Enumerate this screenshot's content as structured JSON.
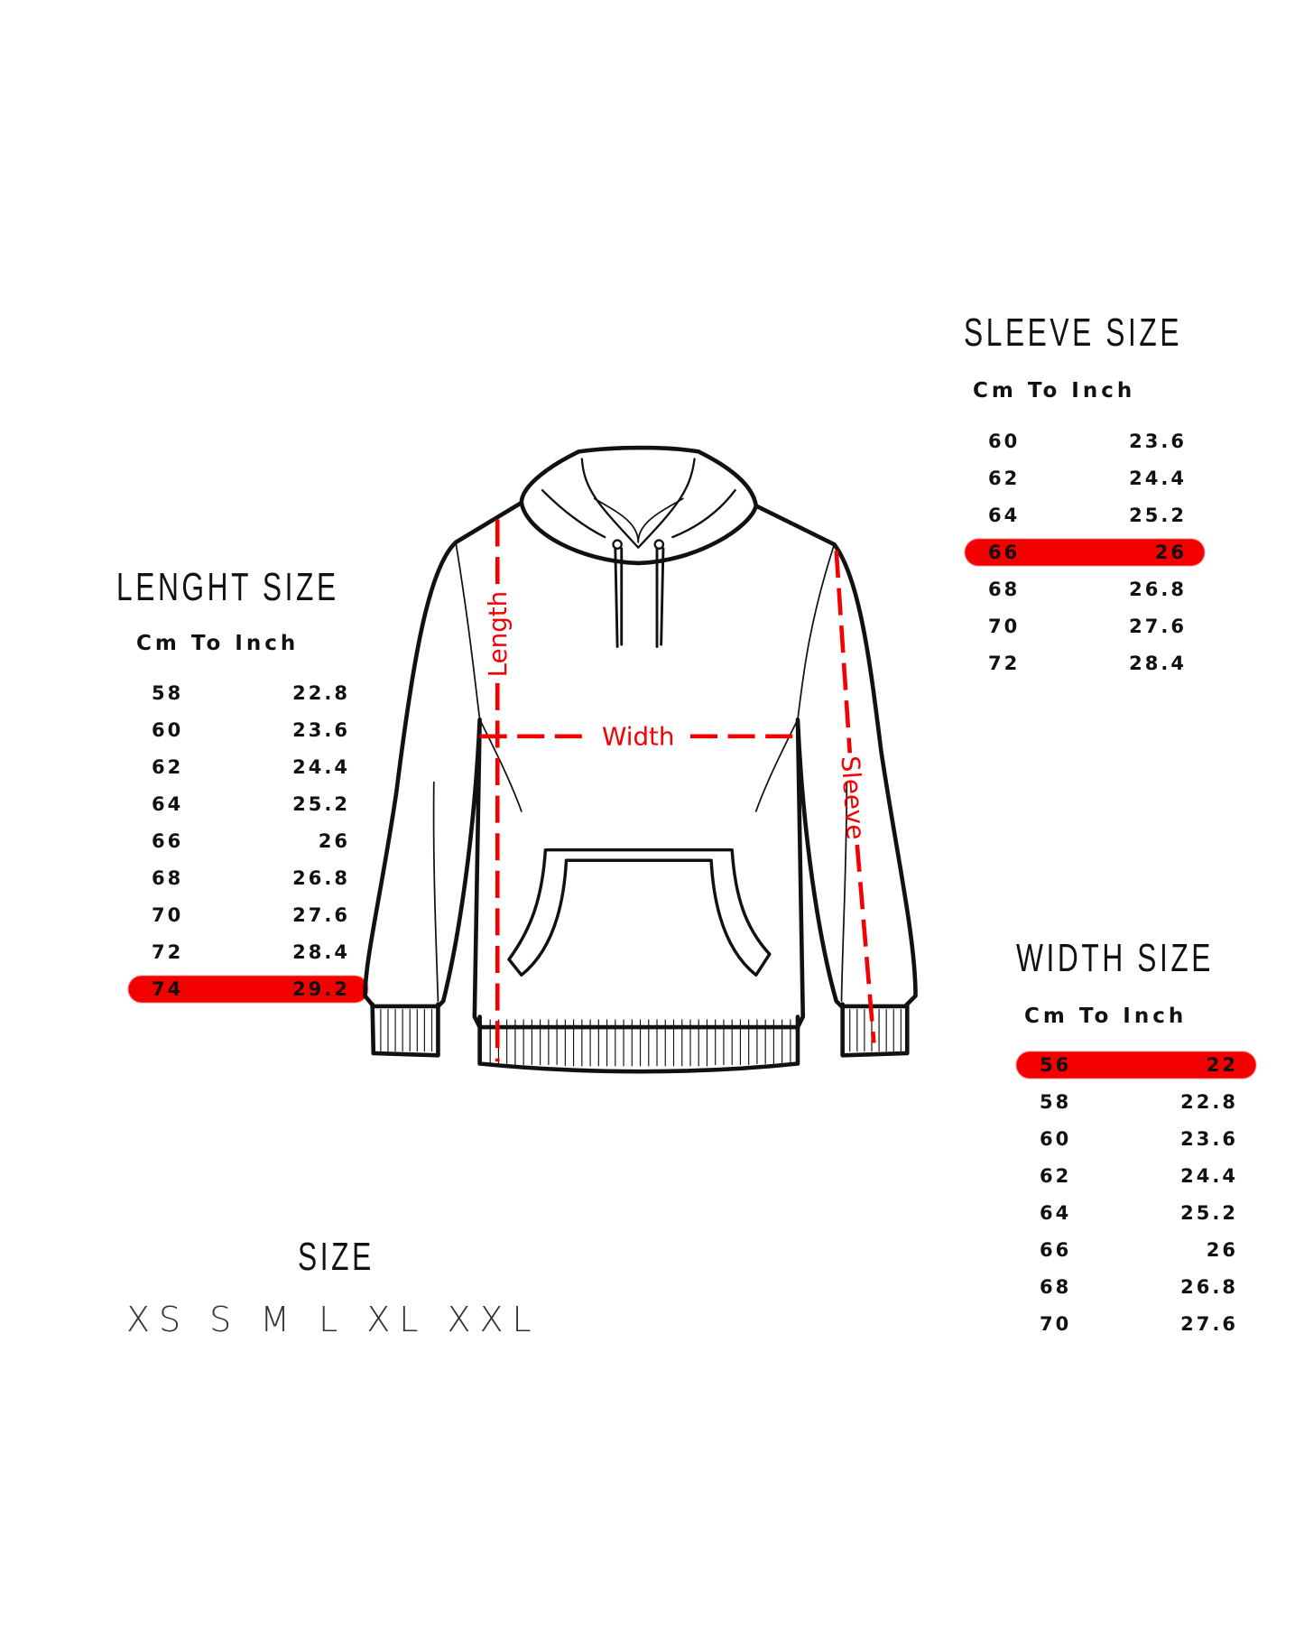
{
  "accent_color": "#f40000",
  "sleeve": {
    "title": "SLEEVE SIZE",
    "subtitle": "Cm To Inch",
    "rows": [
      {
        "cm": "60",
        "inch": "23.6",
        "highlighted": false
      },
      {
        "cm": "62",
        "inch": "24.4",
        "highlighted": false
      },
      {
        "cm": "64",
        "inch": "25.2",
        "highlighted": false
      },
      {
        "cm": "66",
        "inch": "26",
        "highlighted": true
      },
      {
        "cm": "68",
        "inch": "26.8",
        "highlighted": false
      },
      {
        "cm": "70",
        "inch": "27.6",
        "highlighted": false
      },
      {
        "cm": "72",
        "inch": "28.4",
        "highlighted": false
      }
    ]
  },
  "length": {
    "title": "LENGHT SIZE",
    "subtitle": "Cm To Inch",
    "rows": [
      {
        "cm": "58",
        "inch": "22.8",
        "highlighted": false
      },
      {
        "cm": "60",
        "inch": "23.6",
        "highlighted": false
      },
      {
        "cm": "62",
        "inch": "24.4",
        "highlighted": false
      },
      {
        "cm": "64",
        "inch": "25.2",
        "highlighted": false
      },
      {
        "cm": "66",
        "inch": "26",
        "highlighted": false
      },
      {
        "cm": "68",
        "inch": "26.8",
        "highlighted": false
      },
      {
        "cm": "70",
        "inch": "27.6",
        "highlighted": false
      },
      {
        "cm": "72",
        "inch": "28.4",
        "highlighted": false
      },
      {
        "cm": "74",
        "inch": "29.2",
        "highlighted": true
      }
    ]
  },
  "width": {
    "title": "WIDTH SIZE",
    "subtitle": "Cm To Inch",
    "rows": [
      {
        "cm": "56",
        "inch": "22",
        "highlighted": true
      },
      {
        "cm": "58",
        "inch": "22.8",
        "highlighted": false
      },
      {
        "cm": "60",
        "inch": "23.6",
        "highlighted": false
      },
      {
        "cm": "62",
        "inch": "24.4",
        "highlighted": false
      },
      {
        "cm": "64",
        "inch": "25.2",
        "highlighted": false
      },
      {
        "cm": "66",
        "inch": "26",
        "highlighted": false
      },
      {
        "cm": "68",
        "inch": "26.8",
        "highlighted": false
      },
      {
        "cm": "70",
        "inch": "27.6",
        "highlighted": false
      }
    ]
  },
  "size": {
    "title": "SIZE",
    "options": [
      {
        "label": "XS",
        "selected": false
      },
      {
        "label": "S",
        "selected": false
      },
      {
        "label": "M",
        "selected": false
      },
      {
        "label": "L",
        "selected": true
      },
      {
        "label": "XL",
        "selected": false
      },
      {
        "label": "XXL",
        "selected": false
      }
    ]
  },
  "diagram": {
    "icon": "hoodie-icon",
    "length_label": "Length",
    "width_label": "Width",
    "sleeve_label": "Sleeve"
  }
}
